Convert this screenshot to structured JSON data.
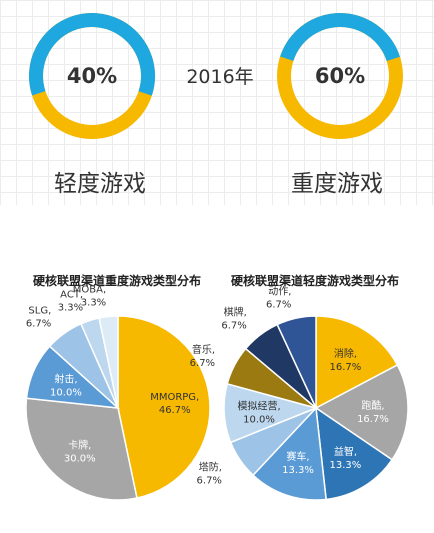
{
  "year": "2016年",
  "donuts": [
    {
      "pct_label": "40%",
      "caption": "轻度游戏",
      "fraction": 0.4
    },
    {
      "pct_label": "60%",
      "caption": "重度游戏",
      "fraction": 0.6
    }
  ],
  "colors": {
    "blue": "#1fa7e0",
    "yellow": "#f7b800"
  },
  "chart_data": [
    {
      "type": "pie",
      "title": "硬核联盟渠道重度游戏类型分布",
      "slices": [
        {
          "name": "MMORPG",
          "value": 46.7,
          "label": "46.7%",
          "color": "#f7b800"
        },
        {
          "name": "卡牌",
          "value": 30.0,
          "label": "30.0%",
          "color": "#a6a6a6"
        },
        {
          "name": "射击",
          "value": 10.0,
          "label": "10.0%",
          "color": "#5b9bd5"
        },
        {
          "name": "SLG",
          "value": 6.7,
          "label": "6.7%",
          "color": "#9dc3e6"
        },
        {
          "name": "ACT",
          "value": 3.3,
          "label": "3.3%",
          "color": "#bdd7ee"
        },
        {
          "name": "MOBA",
          "value": 3.3,
          "label": "3.3%",
          "color": "#ddebf7"
        }
      ]
    },
    {
      "type": "pie",
      "title": "硬核联盟渠道轻度游戏类型分布",
      "slices": [
        {
          "name": "消除",
          "value": 16.7,
          "label": "16.7%",
          "color": "#f7b800"
        },
        {
          "name": "跑酷",
          "value": 16.7,
          "label": "16.7%",
          "color": "#a6a6a6"
        },
        {
          "name": "益智",
          "value": 13.3,
          "label": "13.3%",
          "color": "#2e75b6"
        },
        {
          "name": "赛车",
          "value": 13.3,
          "label": "13.3%",
          "color": "#5b9bd5"
        },
        {
          "name": "塔防",
          "value": 6.7,
          "label": "6.7%",
          "color": "#9dc3e6"
        },
        {
          "name": "模拟经营",
          "value": 10.0,
          "label": "10.0%",
          "color": "#bdd7ee"
        },
        {
          "name": "音乐",
          "value": 6.7,
          "label": "6.7%",
          "color": "#9c7a12"
        },
        {
          "name": "棋牌",
          "value": 6.7,
          "label": "6.7%",
          "color": "#1f3864"
        },
        {
          "name": "动作",
          "value": 6.7,
          "label": "6.7%",
          "color": "#2f5597"
        }
      ]
    }
  ]
}
